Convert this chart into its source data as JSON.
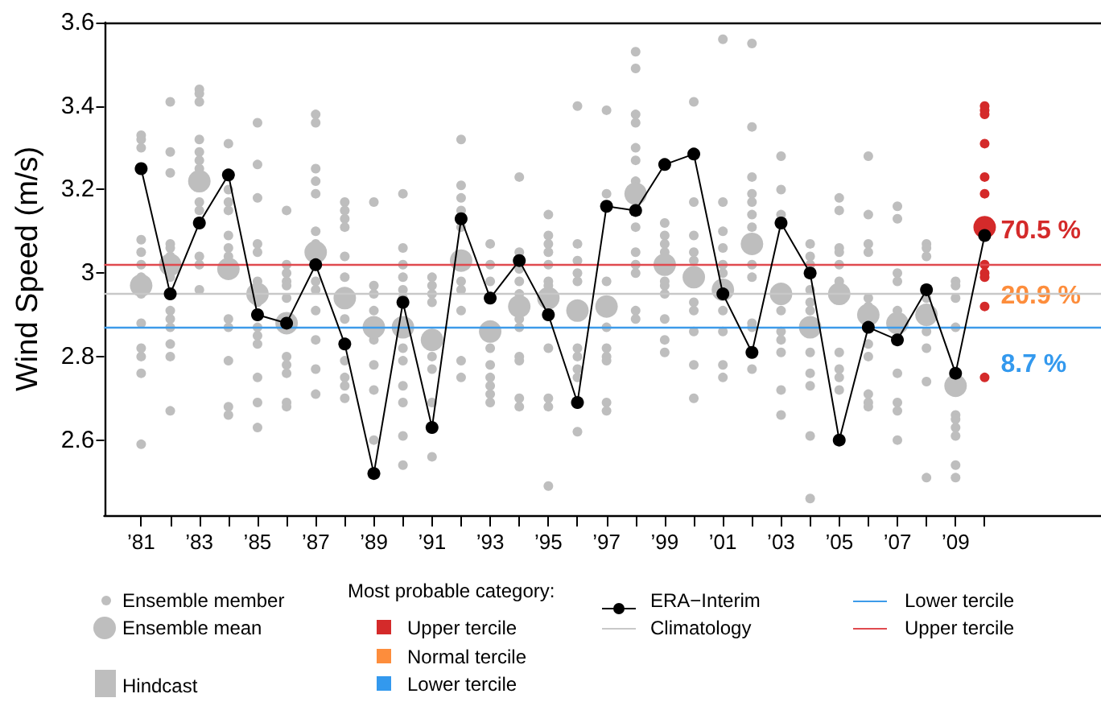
{
  "chart_data": {
    "type": "scatter",
    "ylabel": "Wind Speed (m/s)",
    "legend_title": "Most probable category:",
    "legend": "bottom",
    "marker": "circle",
    "line_style": "solid",
    "xlim": [
      1979.73,
      2014
    ],
    "ylim": [
      2.42,
      3.6
    ],
    "yticks": [
      2.6,
      2.8,
      3,
      3.2,
      3.4,
      3.6
    ],
    "xticks": [
      {
        "value": 1981,
        "label": "’81"
      },
      {
        "value": 1982,
        "label": null
      },
      {
        "value": 1983,
        "label": "’83"
      },
      {
        "value": 1984,
        "label": null
      },
      {
        "value": 1985,
        "label": "’85"
      },
      {
        "value": 1986,
        "label": null
      },
      {
        "value": 1987,
        "label": "’87"
      },
      {
        "value": 1988,
        "label": null
      },
      {
        "value": 1989,
        "label": "’89"
      },
      {
        "value": 1990,
        "label": null
      },
      {
        "value": 1991,
        "label": "’91"
      },
      {
        "value": 1992,
        "label": null
      },
      {
        "value": 1993,
        "label": "’93"
      },
      {
        "value": 1994,
        "label": null
      },
      {
        "value": 1995,
        "label": "’95"
      },
      {
        "value": 1996,
        "label": null
      },
      {
        "value": 1997,
        "label": "’97"
      },
      {
        "value": 1998,
        "label": null
      },
      {
        "value": 1999,
        "label": "’99"
      },
      {
        "value": 2000,
        "label": null
      },
      {
        "value": 2001,
        "label": "’01"
      },
      {
        "value": 2002,
        "label": null
      },
      {
        "value": 2003,
        "label": "’03"
      },
      {
        "value": 2004,
        "label": null
      },
      {
        "value": 2005,
        "label": "’05"
      },
      {
        "value": 2006,
        "label": null
      },
      {
        "value": 2007,
        "label": "’07"
      },
      {
        "value": 2008,
        "label": null
      },
      {
        "value": 2009,
        "label": "’09"
      },
      {
        "value": 2010,
        "label": null
      }
    ],
    "ref_lines": [
      {
        "axis": "y",
        "value": 2.95,
        "label": "Climatology",
        "color": "#c8c8c8"
      },
      {
        "axis": "y",
        "value": 2.87,
        "label": "Lower tercile",
        "color": "#3d9be9"
      },
      {
        "axis": "y",
        "value": 3.02,
        "label": "Upper tercile",
        "color": "#e04a4f"
      }
    ],
    "annotations": [
      "70.5 %",
      "20.9 %",
      "8.7 %",
      "Hindcast"
    ],
    "series": [
      {
        "name": "Ensemble member",
        "color": "#bebebe",
        "x": [
          1981,
          1981,
          1981,
          1981,
          1981,
          1981,
          1981,
          1981,
          1981,
          1981,
          1981,
          1981,
          1981,
          1982,
          1982,
          1982,
          1982,
          1982,
          1982,
          1982,
          1982,
          1982,
          1982,
          1982,
          1982,
          1982,
          1983,
          1983,
          1983,
          1983,
          1983,
          1983,
          1983,
          1983,
          1983,
          1983,
          1983,
          1983,
          1984,
          1984,
          1984,
          1984,
          1984,
          1984,
          1984,
          1984,
          1984,
          1984,
          1984,
          1984,
          1985,
          1985,
          1985,
          1985,
          1985,
          1985,
          1985,
          1985,
          1985,
          1985,
          1985,
          1985,
          1985,
          1986,
          1986,
          1986,
          1986,
          1986,
          1986,
          1986,
          1986,
          1986,
          1986,
          1986,
          1987,
          1987,
          1987,
          1987,
          1987,
          1987,
          1987,
          1987,
          1987,
          1987,
          1987,
          1987,
          1987,
          1988,
          1988,
          1988,
          1988,
          1988,
          1988,
          1988,
          1988,
          1988,
          1988,
          1988,
          1989,
          1989,
          1989,
          1989,
          1989,
          1989,
          1989,
          1989,
          1990,
          1990,
          1990,
          1990,
          1990,
          1990,
          1990,
          1990,
          1990,
          1990,
          1990,
          1990,
          1991,
          1991,
          1991,
          1991,
          1991,
          1991,
          1991,
          1991,
          1992,
          1992,
          1992,
          1992,
          1992,
          1992,
          1992,
          1992,
          1992,
          1992,
          1993,
          1993,
          1993,
          1993,
          1993,
          1993,
          1993,
          1993,
          1993,
          1994,
          1994,
          1994,
          1994,
          1994,
          1994,
          1994,
          1994,
          1994,
          1994,
          1994,
          1995,
          1995,
          1995,
          1995,
          1995,
          1995,
          1995,
          1995,
          1995,
          1995,
          1995,
          1996,
          1996,
          1996,
          1996,
          1996,
          1996,
          1996,
          1996,
          1996,
          1996,
          1997,
          1997,
          1997,
          1997,
          1997,
          1997,
          1997,
          1997,
          1997,
          1998,
          1998,
          1998,
          1998,
          1998,
          1998,
          1998,
          1998,
          1998,
          1998,
          1998,
          1998,
          1998,
          1999,
          1999,
          1999,
          1999,
          1999,
          1999,
          1999,
          1999,
          1999,
          1999,
          2000,
          2000,
          2000,
          2000,
          2000,
          2000,
          2000,
          2000,
          2000,
          2000,
          2001,
          2001,
          2001,
          2001,
          2001,
          2001,
          2001,
          2001,
          2001,
          2001,
          2002,
          2002,
          2002,
          2002,
          2002,
          2002,
          2002,
          2002,
          2002,
          2002,
          2002,
          2002,
          2003,
          2003,
          2003,
          2003,
          2003,
          2003,
          2003,
          2003,
          2003,
          2004,
          2004,
          2004,
          2004,
          2004,
          2004,
          2004,
          2004,
          2004,
          2004,
          2004,
          2005,
          2005,
          2005,
          2005,
          2005,
          2005,
          2005,
          2005,
          2005,
          2005,
          2006,
          2006,
          2006,
          2006,
          2006,
          2006,
          2006,
          2006,
          2006,
          2006,
          2006,
          2007,
          2007,
          2007,
          2007,
          2007,
          2007,
          2007,
          2007,
          2007,
          2008,
          2008,
          2008,
          2008,
          2008,
          2008,
          2008,
          2008,
          2009,
          2009,
          2009,
          2009,
          2009,
          2009,
          2009,
          2009,
          2009,
          2009
        ],
        "values": [
          3.33,
          3.32,
          3.3,
          3.08,
          3.05,
          3.02,
          2.99,
          2.95,
          2.88,
          2.82,
          2.8,
          2.76,
          2.59,
          3.41,
          3.29,
          3.24,
          3.07,
          3.06,
          3.04,
          2.99,
          2.91,
          2.89,
          2.87,
          2.83,
          2.8,
          2.67,
          3.44,
          3.43,
          3.41,
          3.32,
          3.29,
          3.27,
          3.25,
          3.17,
          3.15,
          3.04,
          3.02,
          2.96,
          3.31,
          3.2,
          3.17,
          3.15,
          3.09,
          3.06,
          3.04,
          2.89,
          2.87,
          2.79,
          2.68,
          2.66,
          3.36,
          3.26,
          3.18,
          3.07,
          3.05,
          2.98,
          2.93,
          2.87,
          2.85,
          2.83,
          2.75,
          2.69,
          2.63,
          3.15,
          3.02,
          3.0,
          2.98,
          2.97,
          2.94,
          2.8,
          2.78,
          2.76,
          2.69,
          2.68,
          3.38,
          3.36,
          3.25,
          3.22,
          3.19,
          3.1,
          3.07,
          2.98,
          2.96,
          2.91,
          2.84,
          2.77,
          2.71,
          3.17,
          3.15,
          3.13,
          3.11,
          3.04,
          2.99,
          2.89,
          2.79,
          2.75,
          2.73,
          2.7,
          3.17,
          2.97,
          2.95,
          2.91,
          2.84,
          2.78,
          2.72,
          2.6,
          3.19,
          3.06,
          3.02,
          2.99,
          2.96,
          2.94,
          2.82,
          2.79,
          2.73,
          2.69,
          2.61,
          2.54,
          2.99,
          2.97,
          2.95,
          2.93,
          2.8,
          2.77,
          2.69,
          2.56,
          3.32,
          3.21,
          3.18,
          3.15,
          3.11,
          2.98,
          2.96,
          2.91,
          2.79,
          2.75,
          3.07,
          3.02,
          2.98,
          2.82,
          2.78,
          2.75,
          2.73,
          2.71,
          2.69,
          3.23,
          3.05,
          3.01,
          2.98,
          2.95,
          2.89,
          2.87,
          2.8,
          2.79,
          2.7,
          2.68,
          3.14,
          3.09,
          3.07,
          3.05,
          3.02,
          2.98,
          2.97,
          2.82,
          2.7,
          2.68,
          2.49,
          3.4,
          3.07,
          3.03,
          3.0,
          2.98,
          2.82,
          2.8,
          2.77,
          2.75,
          2.62,
          3.39,
          3.19,
          2.98,
          2.87,
          2.82,
          2.8,
          2.79,
          2.69,
          2.67,
          3.53,
          3.49,
          3.38,
          3.36,
          3.3,
          3.27,
          3.22,
          3.11,
          3.05,
          3.02,
          3.0,
          2.91,
          2.89,
          3.12,
          3.09,
          3.07,
          3.05,
          2.98,
          2.97,
          2.95,
          2.89,
          2.84,
          2.81,
          3.41,
          3.17,
          3.09,
          3.05,
          3.03,
          2.93,
          2.91,
          2.86,
          2.78,
          2.7,
          3.56,
          3.17,
          3.1,
          3.06,
          3.02,
          3.0,
          2.91,
          2.86,
          2.78,
          2.75,
          3.55,
          3.35,
          3.23,
          3.19,
          3.17,
          3.14,
          3.11,
          3.02,
          2.99,
          2.88,
          2.87,
          2.77,
          3.28,
          3.2,
          3.14,
          2.91,
          2.86,
          2.84,
          2.81,
          2.72,
          2.66,
          3.07,
          3.04,
          3.02,
          2.96,
          2.93,
          2.91,
          2.81,
          2.76,
          2.73,
          2.61,
          2.46,
          3.18,
          3.15,
          3.06,
          3.05,
          3.02,
          2.98,
          2.81,
          2.77,
          2.75,
          2.72,
          3.28,
          3.14,
          3.07,
          3.05,
          2.94,
          2.92,
          2.83,
          2.8,
          2.71,
          2.69,
          2.68,
          3.16,
          3.13,
          3.0,
          2.98,
          2.91,
          2.76,
          2.69,
          2.67,
          2.6,
          3.07,
          3.06,
          3.04,
          2.94,
          2.86,
          2.82,
          2.74,
          2.51,
          2.98,
          2.97,
          2.94,
          2.87,
          2.66,
          2.65,
          2.63,
          2.61,
          2.54,
          2.51
        ]
      },
      {
        "name": "Ensemble mean",
        "x": [
          1981,
          1982,
          1983,
          1984,
          1985,
          1986,
          1987,
          1988,
          1989,
          1990,
          1991,
          1992,
          1993,
          1994,
          1995,
          1996,
          1997,
          1998,
          1999,
          2000,
          2001,
          2002,
          2003,
          2004,
          2005,
          2006,
          2007,
          2008,
          2009,
          2010
        ],
        "values": [
          2.97,
          3.02,
          3.22,
          3.01,
          2.95,
          2.88,
          3.05,
          2.94,
          2.87,
          2.87,
          2.84,
          3.03,
          2.86,
          2.92,
          2.94,
          2.91,
          2.92,
          3.19,
          3.02,
          2.99,
          2.96,
          3.07,
          2.95,
          2.87,
          2.95,
          2.9,
          2.88,
          2.9,
          2.73,
          3.11
        ],
        "colors": [
          "#bebebe",
          "#bebebe",
          "#bebebe",
          "#bebebe",
          "#bebebe",
          "#bebebe",
          "#bebebe",
          "#bebebe",
          "#bebebe",
          "#bebebe",
          "#bebebe",
          "#bebebe",
          "#bebebe",
          "#bebebe",
          "#bebebe",
          "#bebebe",
          "#bebebe",
          "#bebebe",
          "#bebebe",
          "#bebebe",
          "#bebebe",
          "#bebebe",
          "#bebebe",
          "#bebebe",
          "#bebebe",
          "#bebebe",
          "#bebebe",
          "#bebebe",
          "#bebebe",
          "#d42a2a"
        ]
      },
      {
        "name": "ERA−Interim",
        "type": "line",
        "color": "#000000",
        "x": [
          1981,
          1982,
          1983,
          1984,
          1985,
          1986,
          1987,
          1988,
          1989,
          1990,
          1991,
          1992,
          1993,
          1994,
          1995,
          1996,
          1997,
          1998,
          1999,
          2000,
          2001,
          2002,
          2003,
          2004,
          2005,
          2006,
          2007,
          2008,
          2009,
          2010
        ],
        "values": [
          3.25,
          2.95,
          3.12,
          3.235,
          2.9,
          2.88,
          3.02,
          2.83,
          2.52,
          2.93,
          2.63,
          3.13,
          2.94,
          3.03,
          2.9,
          2.69,
          3.16,
          3.15,
          3.26,
          3.285,
          2.95,
          2.81,
          3.12,
          3.0,
          2.6,
          2.87,
          2.84,
          2.96,
          2.76,
          3.09
        ]
      },
      {
        "color": "#d42a2a",
        "x": [
          2010,
          2010,
          2010,
          2010,
          2010,
          2010,
          2010,
          2010,
          2010,
          2010,
          2010
        ],
        "values": [
          3.4,
          3.39,
          3.38,
          3.31,
          3.23,
          3.19,
          3.02,
          3.0,
          2.99,
          2.92,
          2.75
        ]
      },
      {
        "name": "Upper tercile",
        "color": "#d42a2a"
      },
      {
        "name": "Normal tercile",
        "color": "#fd8d3c"
      },
      {
        "name": "Lower tercile",
        "color": "#3399ee"
      }
    ]
  }
}
